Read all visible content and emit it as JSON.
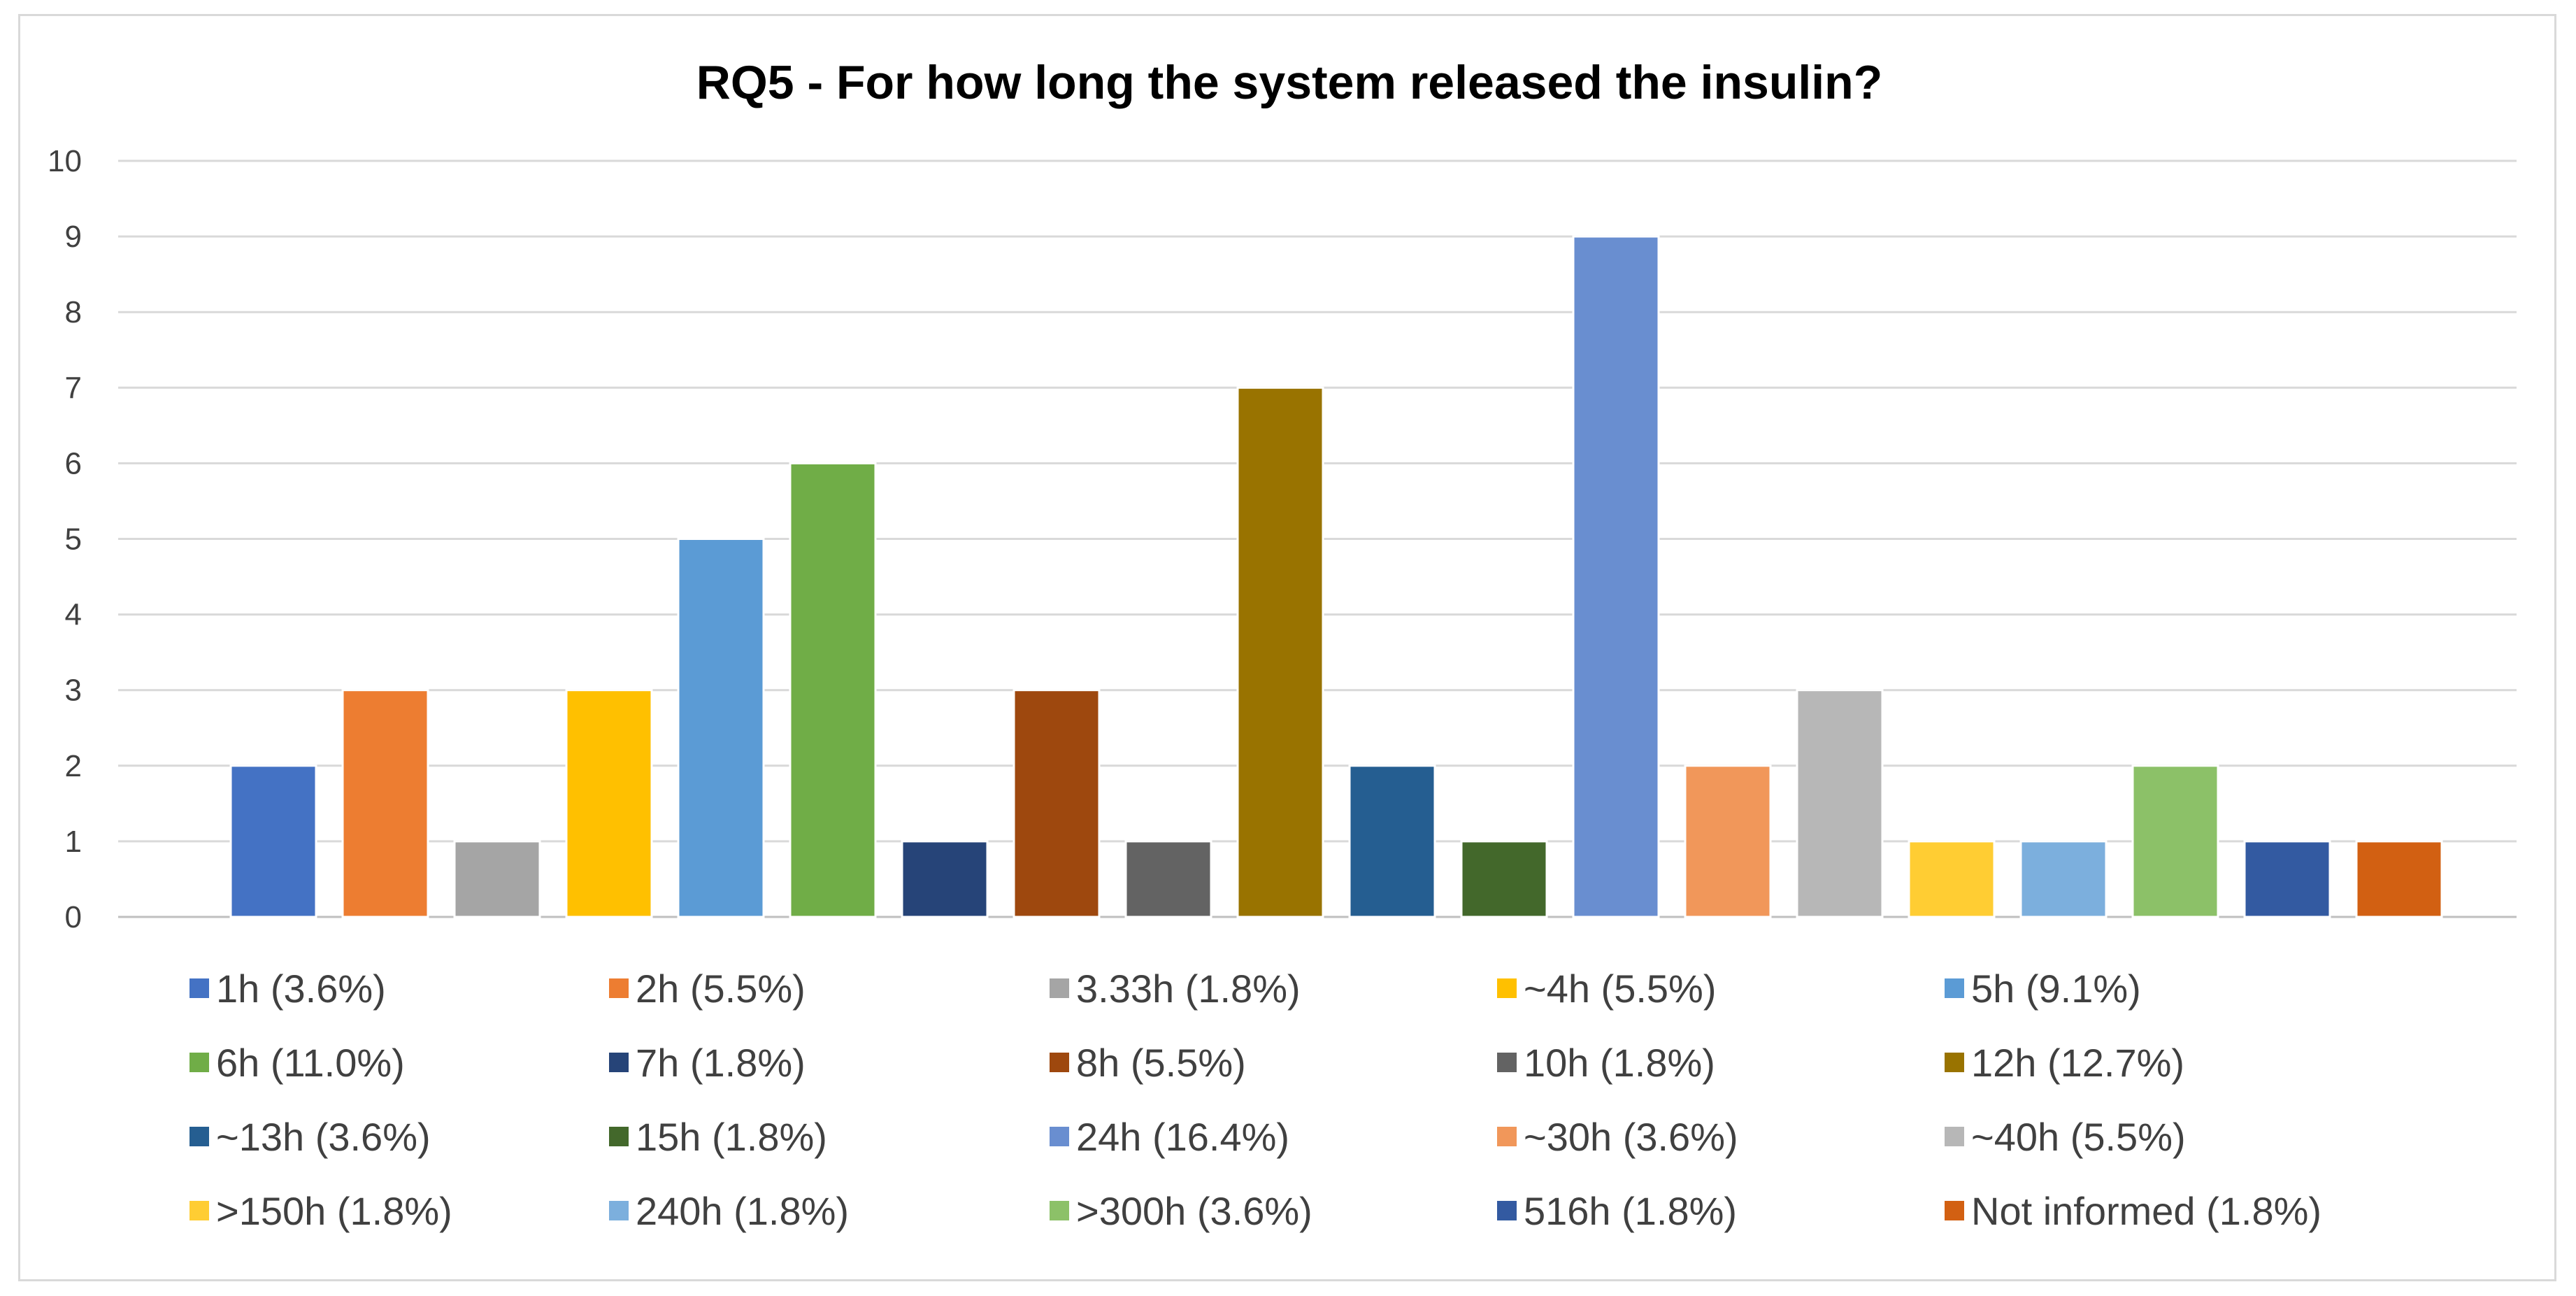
{
  "chart_data": {
    "type": "bar",
    "title": "RQ5 - For how long the system released the insulin?",
    "xlabel": "",
    "ylabel": "",
    "ylim": [
      0,
      10
    ],
    "yticks": [
      0,
      1,
      2,
      3,
      4,
      5,
      6,
      7,
      8,
      9,
      10
    ],
    "grid": true,
    "legend_position": "bottom",
    "series": [
      {
        "name": "1h (3.6%)",
        "value": 2,
        "color": "#4472c4"
      },
      {
        "name": "2h (5.5%)",
        "value": 3,
        "color": "#ed7d31"
      },
      {
        "name": "3.33h (1.8%)",
        "value": 1,
        "color": "#a5a5a5"
      },
      {
        "name": "~4h (5.5%)",
        "value": 3,
        "color": "#ffc000"
      },
      {
        "name": "5h (9.1%)",
        "value": 5,
        "color": "#5b9bd5"
      },
      {
        "name": "6h (11.0%)",
        "value": 6,
        "color": "#70ad47"
      },
      {
        "name": "7h (1.8%)",
        "value": 1,
        "color": "#264478"
      },
      {
        "name": "8h (5.5%)",
        "value": 3,
        "color": "#9e480e"
      },
      {
        "name": "10h (1.8%)",
        "value": 1,
        "color": "#636363"
      },
      {
        "name": "12h (12.7%)",
        "value": 7,
        "color": "#997300"
      },
      {
        "name": "~13h (3.6%)",
        "value": 2,
        "color": "#255e91"
      },
      {
        "name": "15h (1.8%)",
        "value": 1,
        "color": "#43682b"
      },
      {
        "name": "24h (16.4%)",
        "value": 9,
        "color": "#698ed0"
      },
      {
        "name": "~30h (3.6%)",
        "value": 2,
        "color": "#f1975a"
      },
      {
        "name": "~40h (5.5%)",
        "value": 3,
        "color": "#b7b7b7"
      },
      {
        "name": ">150h (1.8%)",
        "value": 1,
        "color": "#ffcd33"
      },
      {
        "name": "240h (1.8%)",
        "value": 1,
        "color": "#7cafdd"
      },
      {
        "name": ">300h (3.6%)",
        "value": 2,
        "color": "#8cc168"
      },
      {
        "name": "516h (1.8%)",
        "value": 1,
        "color": "#335aa1"
      },
      {
        "name": "Not informed (1.8%)",
        "value": 1,
        "color": "#d26012"
      }
    ]
  }
}
